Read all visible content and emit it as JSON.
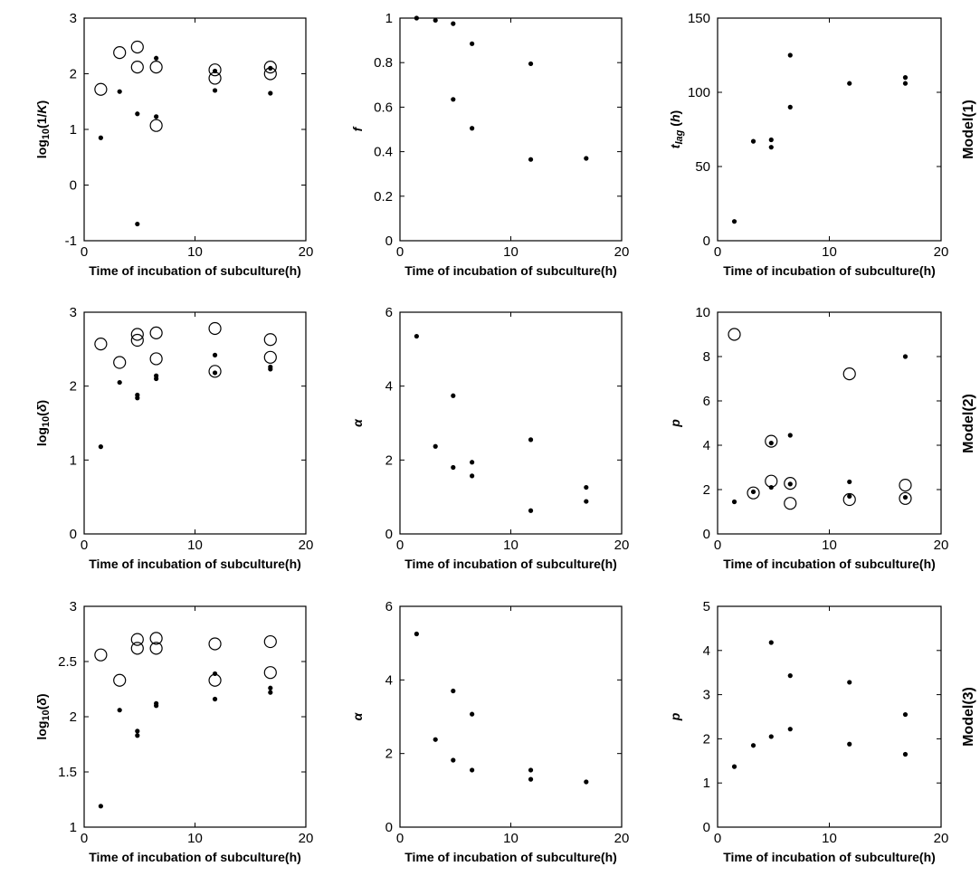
{
  "figure": {
    "row_labels": [
      "Model(1)",
      "Model(2)",
      "Model(3)"
    ]
  },
  "chart_data": [
    {
      "panel": "r1c1",
      "type": "scatter",
      "xlabel": "Time of incubation of subculture(h)",
      "ylabel_parts": [
        {
          "t": "log"
        },
        {
          "t": "10",
          "sub": true
        },
        {
          "t": "(1/"
        },
        {
          "t": "K",
          "italic": true
        },
        {
          "t": ")"
        }
      ],
      "xlim": [
        0,
        20
      ],
      "ylim": [
        -1,
        3
      ],
      "xticks": [
        "0",
        "10",
        "20"
      ],
      "yticks": [
        "-1",
        "0",
        "1",
        "2",
        "3"
      ],
      "xtick_values": [
        0,
        10,
        20
      ],
      "ytick_values": [
        -1,
        0,
        1,
        2,
        3
      ],
      "series": [
        {
          "marker": "dot",
          "x": [
            1.5,
            3.2,
            4.8,
            4.8,
            6.5,
            6.5,
            11.8,
            11.8,
            16.8,
            16.8
          ],
          "y": [
            0.85,
            1.68,
            -0.7,
            1.28,
            1.23,
            2.28,
            1.7,
            2.05,
            1.65,
            2.1
          ]
        },
        {
          "marker": "circle",
          "x": [
            1.5,
            3.2,
            4.8,
            4.8,
            6.5,
            6.5,
            11.8,
            11.8,
            16.8,
            16.8
          ],
          "y": [
            1.72,
            2.38,
            2.48,
            2.12,
            2.12,
            1.07,
            2.07,
            1.92,
            2.12,
            2.0
          ]
        }
      ]
    },
    {
      "panel": "r1c2",
      "type": "scatter",
      "xlabel": "Time of incubation of subculture(h)",
      "ylabel_parts": [
        {
          "t": "f",
          "italic": true
        }
      ],
      "xlim": [
        0,
        20
      ],
      "ylim": [
        0,
        1
      ],
      "xticks": [
        "0",
        "10",
        "20"
      ],
      "yticks": [
        "0",
        "0.2",
        "0.4",
        "0.6",
        "0.8",
        "1"
      ],
      "xtick_values": [
        0,
        10,
        20
      ],
      "ytick_values": [
        0,
        0.2,
        0.4,
        0.6,
        0.8,
        1
      ],
      "series": [
        {
          "marker": "dot",
          "x": [
            1.5,
            3.2,
            4.8,
            4.8,
            6.5,
            6.5,
            11.8,
            11.8,
            16.8
          ],
          "y": [
            1.0,
            0.99,
            0.975,
            0.635,
            0.885,
            0.505,
            0.795,
            0.365,
            0.37
          ]
        }
      ]
    },
    {
      "panel": "r1c3",
      "type": "scatter",
      "xlabel": "Time of incubation of subculture(h)",
      "ylabel_parts": [
        {
          "t": "t",
          "italic": true
        },
        {
          "t": "lag",
          "sub": true,
          "italic": true
        },
        {
          "t": " ("
        },
        {
          "t": "h",
          "italic": true
        },
        {
          "t": ")"
        }
      ],
      "xlim": [
        0,
        20
      ],
      "ylim": [
        0,
        150
      ],
      "xticks": [
        "0",
        "10",
        "20"
      ],
      "yticks": [
        "0",
        "50",
        "100",
        "150"
      ],
      "xtick_values": [
        0,
        10,
        20
      ],
      "ytick_values": [
        0,
        50,
        100,
        150
      ],
      "series": [
        {
          "marker": "dot",
          "x": [
            1.5,
            3.2,
            4.8,
            4.8,
            6.5,
            6.5,
            11.8,
            16.8,
            16.8
          ],
          "y": [
            13,
            67,
            68,
            63,
            125,
            90,
            106,
            110,
            106
          ]
        }
      ]
    },
    {
      "panel": "r2c1",
      "type": "scatter",
      "xlabel": "Time of incubation of subculture(h)",
      "ylabel_parts": [
        {
          "t": "log"
        },
        {
          "t": "10",
          "sub": true
        },
        {
          "t": "("
        },
        {
          "t": "δ",
          "italic": true
        },
        {
          "t": ")"
        }
      ],
      "xlim": [
        0,
        20
      ],
      "ylim": [
        0,
        3
      ],
      "xticks": [
        "0",
        "10",
        "20"
      ],
      "yticks": [
        "0",
        "1",
        "2",
        "3"
      ],
      "xtick_values": [
        0,
        10,
        20
      ],
      "ytick_values": [
        0,
        1,
        2,
        3
      ],
      "series": [
        {
          "marker": "dot",
          "x": [
            1.5,
            3.2,
            4.8,
            4.8,
            6.5,
            6.5,
            11.8,
            11.8,
            16.8,
            16.8
          ],
          "y": [
            1.18,
            2.05,
            1.88,
            1.84,
            2.14,
            2.1,
            2.42,
            2.18,
            2.26,
            2.23
          ]
        },
        {
          "marker": "circle",
          "x": [
            1.5,
            3.2,
            4.8,
            4.8,
            6.5,
            6.5,
            11.8,
            11.8,
            16.8,
            16.8
          ],
          "y": [
            2.57,
            2.32,
            2.7,
            2.62,
            2.72,
            2.37,
            2.78,
            2.2,
            2.63,
            2.39
          ]
        }
      ]
    },
    {
      "panel": "r2c2",
      "type": "scatter",
      "xlabel": "Time of incubation of subculture(h)",
      "ylabel_parts": [
        {
          "t": "α",
          "italic": true
        }
      ],
      "xlim": [
        0,
        20
      ],
      "ylim": [
        0,
        6
      ],
      "xticks": [
        "0",
        "10",
        "20"
      ],
      "yticks": [
        "0",
        "2",
        "4",
        "6"
      ],
      "xtick_values": [
        0,
        10,
        20
      ],
      "ytick_values": [
        0,
        2,
        4,
        6
      ],
      "series": [
        {
          "marker": "dot",
          "x": [
            1.5,
            3.2,
            4.8,
            4.8,
            6.5,
            6.5,
            11.8,
            11.8,
            16.8,
            16.8
          ],
          "y": [
            5.35,
            2.37,
            3.74,
            1.8,
            1.94,
            1.57,
            2.55,
            0.63,
            1.26,
            0.88
          ]
        }
      ]
    },
    {
      "panel": "r2c3",
      "type": "scatter",
      "xlabel": "Time of incubation of subculture(h)",
      "ylabel_parts": [
        {
          "t": "p",
          "italic": true
        }
      ],
      "xlim": [
        0,
        20
      ],
      "ylim": [
        0,
        10
      ],
      "xticks": [
        "0",
        "10",
        "20"
      ],
      "yticks": [
        "0",
        "2",
        "4",
        "6",
        "8",
        "10"
      ],
      "xtick_values": [
        0,
        10,
        20
      ],
      "ytick_values": [
        0,
        2,
        4,
        6,
        8,
        10
      ],
      "series": [
        {
          "marker": "dot",
          "x": [
            1.5,
            3.2,
            4.8,
            4.8,
            6.5,
            6.5,
            11.8,
            11.8,
            16.8,
            16.8
          ],
          "y": [
            1.45,
            1.9,
            4.1,
            2.1,
            4.45,
            2.25,
            2.35,
            1.7,
            8.0,
            1.65
          ]
        },
        {
          "marker": "circle",
          "x": [
            1.5,
            3.2,
            4.8,
            4.8,
            6.5,
            6.5,
            11.8,
            11.8,
            16.8,
            16.8
          ],
          "y": [
            9.0,
            1.85,
            4.18,
            2.38,
            2.28,
            1.38,
            7.22,
            1.55,
            2.2,
            1.6
          ]
        }
      ]
    },
    {
      "panel": "r3c1",
      "type": "scatter",
      "xlabel": "Time of incubation of subculture(h)",
      "ylabel_parts": [
        {
          "t": "log"
        },
        {
          "t": "10",
          "sub": true
        },
        {
          "t": "("
        },
        {
          "t": "δ",
          "italic": true
        },
        {
          "t": ")"
        }
      ],
      "xlim": [
        0,
        20
      ],
      "ylim": [
        1,
        3
      ],
      "xticks": [
        "0",
        "10",
        "20"
      ],
      "yticks": [
        "1",
        "1.5",
        "2",
        "2.5",
        "3"
      ],
      "xtick_values": [
        0,
        10,
        20
      ],
      "ytick_values": [
        1,
        1.5,
        2,
        2.5,
        3
      ],
      "series": [
        {
          "marker": "dot",
          "x": [
            1.5,
            3.2,
            4.8,
            4.8,
            6.5,
            6.5,
            11.8,
            11.8,
            16.8,
            16.8
          ],
          "y": [
            1.19,
            2.06,
            1.87,
            1.83,
            2.12,
            2.1,
            2.39,
            2.16,
            2.26,
            2.22
          ]
        },
        {
          "marker": "circle",
          "x": [
            1.5,
            3.2,
            4.8,
            4.8,
            6.5,
            6.5,
            11.8,
            11.8,
            16.8,
            16.8
          ],
          "y": [
            2.56,
            2.33,
            2.7,
            2.62,
            2.71,
            2.62,
            2.66,
            2.33,
            2.68,
            2.4
          ]
        }
      ]
    },
    {
      "panel": "r3c2",
      "type": "scatter",
      "xlabel": "Time of incubation of subculture(h)",
      "ylabel_parts": [
        {
          "t": "α",
          "italic": true
        }
      ],
      "xlim": [
        0,
        20
      ],
      "ylim": [
        0,
        6
      ],
      "xticks": [
        "0",
        "10",
        "20"
      ],
      "yticks": [
        "0",
        "2",
        "4",
        "6"
      ],
      "xtick_values": [
        0,
        10,
        20
      ],
      "ytick_values": [
        0,
        2,
        4,
        6
      ],
      "series": [
        {
          "marker": "dot",
          "x": [
            1.5,
            3.2,
            4.8,
            4.8,
            6.5,
            6.5,
            11.8,
            11.8,
            16.8
          ],
          "y": [
            5.25,
            2.38,
            3.7,
            1.82,
            3.07,
            1.55,
            1.55,
            1.3,
            1.23
          ]
        }
      ]
    },
    {
      "panel": "r3c3",
      "type": "scatter",
      "xlabel": "Time of incubation of subculture(h)",
      "ylabel_parts": [
        {
          "t": "p",
          "italic": true
        }
      ],
      "xlim": [
        0,
        20
      ],
      "ylim": [
        0,
        5
      ],
      "xticks": [
        "0",
        "10",
        "20"
      ],
      "yticks": [
        "0",
        "1",
        "2",
        "3",
        "4",
        "5"
      ],
      "xtick_values": [
        0,
        10,
        20
      ],
      "ytick_values": [
        0,
        1,
        2,
        3,
        4,
        5
      ],
      "series": [
        {
          "marker": "dot",
          "x": [
            1.5,
            3.2,
            4.8,
            4.8,
            6.5,
            6.5,
            11.8,
            11.8,
            16.8,
            16.8
          ],
          "y": [
            1.37,
            1.85,
            4.18,
            2.05,
            3.43,
            2.22,
            3.28,
            1.88,
            2.55,
            1.65
          ]
        }
      ]
    }
  ]
}
